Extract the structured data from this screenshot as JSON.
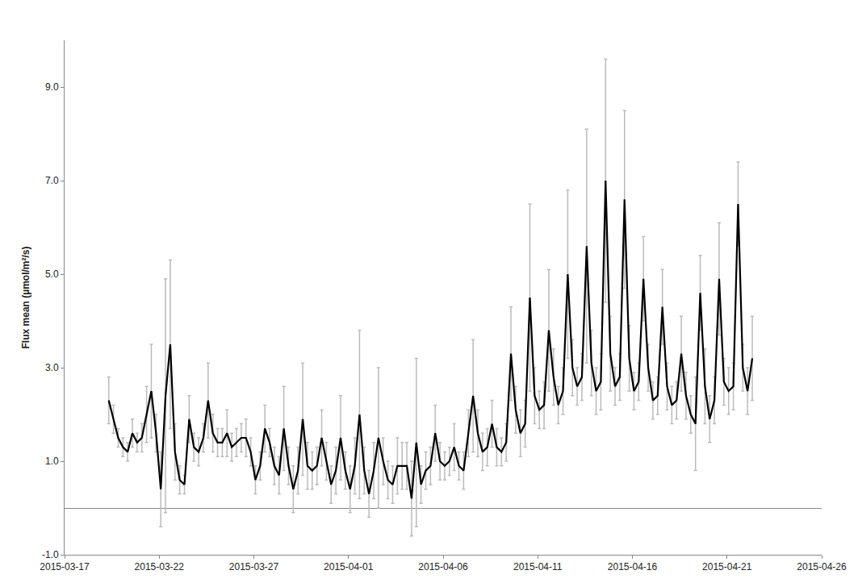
{
  "chart_data": {
    "type": "line",
    "y_label": "Flux mean (µmol/m²/s)",
    "xlim": [
      "2015-03-17",
      "2015-04-26"
    ],
    "xticks": [
      "2015-03-17",
      "2015-03-22",
      "2015-03-27",
      "2015-04-01",
      "2015-04-06",
      "2015-04-11",
      "2015-04-16",
      "2015-04-21",
      "2015-04-26"
    ],
    "ylim": [
      -1,
      10
    ],
    "yticks": [
      {
        "value": -1,
        "label": "-1.0"
      },
      {
        "value": 1,
        "label": "1.0"
      },
      {
        "value": 3,
        "label": "3.0"
      },
      {
        "value": 5,
        "label": "5.0"
      },
      {
        "value": 7,
        "label": "7.0"
      },
      {
        "value": 9,
        "label": "9.0"
      }
    ],
    "grid": false,
    "x": [
      "2015-03-19 08:00",
      "2015-03-19 14:00",
      "2015-03-19 20:00",
      "2015-03-20 02:00",
      "2015-03-20 08:00",
      "2015-03-20 14:00",
      "2015-03-20 20:00",
      "2015-03-21 02:00",
      "2015-03-21 08:00",
      "2015-03-21 14:00",
      "2015-03-21 20:00",
      "2015-03-22 02:00",
      "2015-03-22 08:00",
      "2015-03-22 14:00",
      "2015-03-22 20:00",
      "2015-03-23 02:00",
      "2015-03-23 08:00",
      "2015-03-23 14:00",
      "2015-03-23 20:00",
      "2015-03-24 02:00",
      "2015-03-24 08:00",
      "2015-03-24 14:00",
      "2015-03-24 20:00",
      "2015-03-25 02:00",
      "2015-03-25 08:00",
      "2015-03-25 14:00",
      "2015-03-25 20:00",
      "2015-03-26 02:00",
      "2015-03-26 08:00",
      "2015-03-26 14:00",
      "2015-03-26 20:00",
      "2015-03-27 02:00",
      "2015-03-27 08:00",
      "2015-03-27 14:00",
      "2015-03-27 20:00",
      "2015-03-28 02:00",
      "2015-03-28 08:00",
      "2015-03-28 14:00",
      "2015-03-28 20:00",
      "2015-03-29 02:00",
      "2015-03-29 08:00",
      "2015-03-29 14:00",
      "2015-03-29 20:00",
      "2015-03-30 02:00",
      "2015-03-30 08:00",
      "2015-03-30 14:00",
      "2015-03-30 20:00",
      "2015-03-31 02:00",
      "2015-03-31 08:00",
      "2015-03-31 14:00",
      "2015-03-31 20:00",
      "2015-04-01 02:00",
      "2015-04-01 08:00",
      "2015-04-01 14:00",
      "2015-04-01 20:00",
      "2015-04-02 02:00",
      "2015-04-02 08:00",
      "2015-04-02 14:00",
      "2015-04-02 20:00",
      "2015-04-03 02:00",
      "2015-04-03 08:00",
      "2015-04-03 14:00",
      "2015-04-03 20:00",
      "2015-04-04 02:00",
      "2015-04-04 08:00",
      "2015-04-04 14:00",
      "2015-04-04 20:00",
      "2015-04-05 02:00",
      "2015-04-05 08:00",
      "2015-04-05 14:00",
      "2015-04-05 20:00",
      "2015-04-06 02:00",
      "2015-04-06 08:00",
      "2015-04-06 14:00",
      "2015-04-06 20:00",
      "2015-04-07 02:00",
      "2015-04-07 08:00",
      "2015-04-07 14:00",
      "2015-04-07 20:00",
      "2015-04-08 02:00",
      "2015-04-08 08:00",
      "2015-04-08 14:00",
      "2015-04-08 20:00",
      "2015-04-09 02:00",
      "2015-04-09 08:00",
      "2015-04-09 14:00",
      "2015-04-09 20:00",
      "2015-04-10 02:00",
      "2015-04-10 08:00",
      "2015-04-10 14:00",
      "2015-04-10 20:00",
      "2015-04-11 02:00",
      "2015-04-11 08:00",
      "2015-04-11 14:00",
      "2015-04-11 20:00",
      "2015-04-12 02:00",
      "2015-04-12 08:00",
      "2015-04-12 14:00",
      "2015-04-12 20:00",
      "2015-04-13 02:00",
      "2015-04-13 08:00",
      "2015-04-13 14:00",
      "2015-04-13 20:00",
      "2015-04-14 02:00",
      "2015-04-14 08:00",
      "2015-04-14 14:00",
      "2015-04-14 20:00",
      "2015-04-15 02:00",
      "2015-04-15 08:00",
      "2015-04-15 14:00",
      "2015-04-15 20:00",
      "2015-04-16 02:00",
      "2015-04-16 08:00",
      "2015-04-16 14:00",
      "2015-04-16 20:00",
      "2015-04-17 02:00",
      "2015-04-17 08:00",
      "2015-04-17 14:00",
      "2015-04-17 20:00",
      "2015-04-18 02:00",
      "2015-04-18 08:00",
      "2015-04-18 14:00",
      "2015-04-18 20:00",
      "2015-04-19 02:00",
      "2015-04-19 08:00",
      "2015-04-19 14:00",
      "2015-04-19 20:00",
      "2015-04-20 02:00",
      "2015-04-20 08:00",
      "2015-04-20 14:00",
      "2015-04-20 20:00",
      "2015-04-21 02:00",
      "2015-04-21 08:00",
      "2015-04-21 14:00",
      "2015-04-21 20:00",
      "2015-04-22 02:00",
      "2015-04-22 08:00"
    ],
    "series": [
      {
        "color": "#000000",
        "error_color": "#bbbbbb",
        "values": [
          2.3,
          1.9,
          1.5,
          1.3,
          1.2,
          1.6,
          1.4,
          1.5,
          2.0,
          2.5,
          1.6,
          0.4,
          2.4,
          3.5,
          1.2,
          0.6,
          0.5,
          1.9,
          1.3,
          1.2,
          1.5,
          2.3,
          1.6,
          1.4,
          1.4,
          1.6,
          1.3,
          1.4,
          1.5,
          1.5,
          1.2,
          0.6,
          0.9,
          1.7,
          1.4,
          0.9,
          0.7,
          1.7,
          0.9,
          0.4,
          0.8,
          1.9,
          0.9,
          0.8,
          0.9,
          1.5,
          1.0,
          0.5,
          0.8,
          1.5,
          0.8,
          0.4,
          0.9,
          2.0,
          0.8,
          0.3,
          0.8,
          1.5,
          1.0,
          0.6,
          0.5,
          0.9,
          0.9,
          0.9,
          0.2,
          1.4,
          0.5,
          0.8,
          0.9,
          1.6,
          1.0,
          0.9,
          1.0,
          1.3,
          0.9,
          0.8,
          1.6,
          2.4,
          1.6,
          1.2,
          1.3,
          1.8,
          1.3,
          1.2,
          1.4,
          3.3,
          2.1,
          1.6,
          1.8,
          4.5,
          2.4,
          2.1,
          2.2,
          3.8,
          2.8,
          2.2,
          2.5,
          5.0,
          3.0,
          2.6,
          2.8,
          5.6,
          3.1,
          2.5,
          2.7,
          7.0,
          3.3,
          2.6,
          2.8,
          6.6,
          3.2,
          2.5,
          2.7,
          4.9,
          3.0,
          2.3,
          2.4,
          4.3,
          2.6,
          2.2,
          2.3,
          3.3,
          2.4,
          2.0,
          1.8,
          4.6,
          2.6,
          1.9,
          2.3,
          4.9,
          2.7,
          2.5,
          2.6,
          6.5,
          3.0,
          2.5,
          3.2
        ],
        "error": [
          0.5,
          0.3,
          0.2,
          0.2,
          0.2,
          0.3,
          0.2,
          0.3,
          0.6,
          1.0,
          0.4,
          0.8,
          2.5,
          1.8,
          0.6,
          0.3,
          0.2,
          0.5,
          0.3,
          0.3,
          0.3,
          0.8,
          0.4,
          0.3,
          0.3,
          0.5,
          0.3,
          0.3,
          0.3,
          0.4,
          0.3,
          0.3,
          0.3,
          0.5,
          0.3,
          0.4,
          0.4,
          0.9,
          0.4,
          0.5,
          0.5,
          1.2,
          0.5,
          0.4,
          0.4,
          0.6,
          0.4,
          0.4,
          0.5,
          0.9,
          0.4,
          0.5,
          0.6,
          1.8,
          0.5,
          0.5,
          0.6,
          1.5,
          0.5,
          0.4,
          0.4,
          0.6,
          0.5,
          0.5,
          0.8,
          1.8,
          0.4,
          0.4,
          0.4,
          0.6,
          0.4,
          0.3,
          0.3,
          0.5,
          0.3,
          0.4,
          0.5,
          1.2,
          0.5,
          0.4,
          0.4,
          0.5,
          0.4,
          0.3,
          0.4,
          1.0,
          0.5,
          0.5,
          0.5,
          2.0,
          0.6,
          0.4,
          0.5,
          1.3,
          0.6,
          0.4,
          0.5,
          1.8,
          0.6,
          0.4,
          0.5,
          2.5,
          0.7,
          0.5,
          0.6,
          2.6,
          0.8,
          0.4,
          0.5,
          1.9,
          0.7,
          0.4,
          0.4,
          0.9,
          0.5,
          0.4,
          0.4,
          0.8,
          0.5,
          0.4,
          0.4,
          0.8,
          0.5,
          0.4,
          1.0,
          0.8,
          0.8,
          0.5,
          0.5,
          1.2,
          0.5,
          0.5,
          0.5,
          0.9,
          0.5,
          0.5,
          0.9
        ]
      }
    ]
  }
}
